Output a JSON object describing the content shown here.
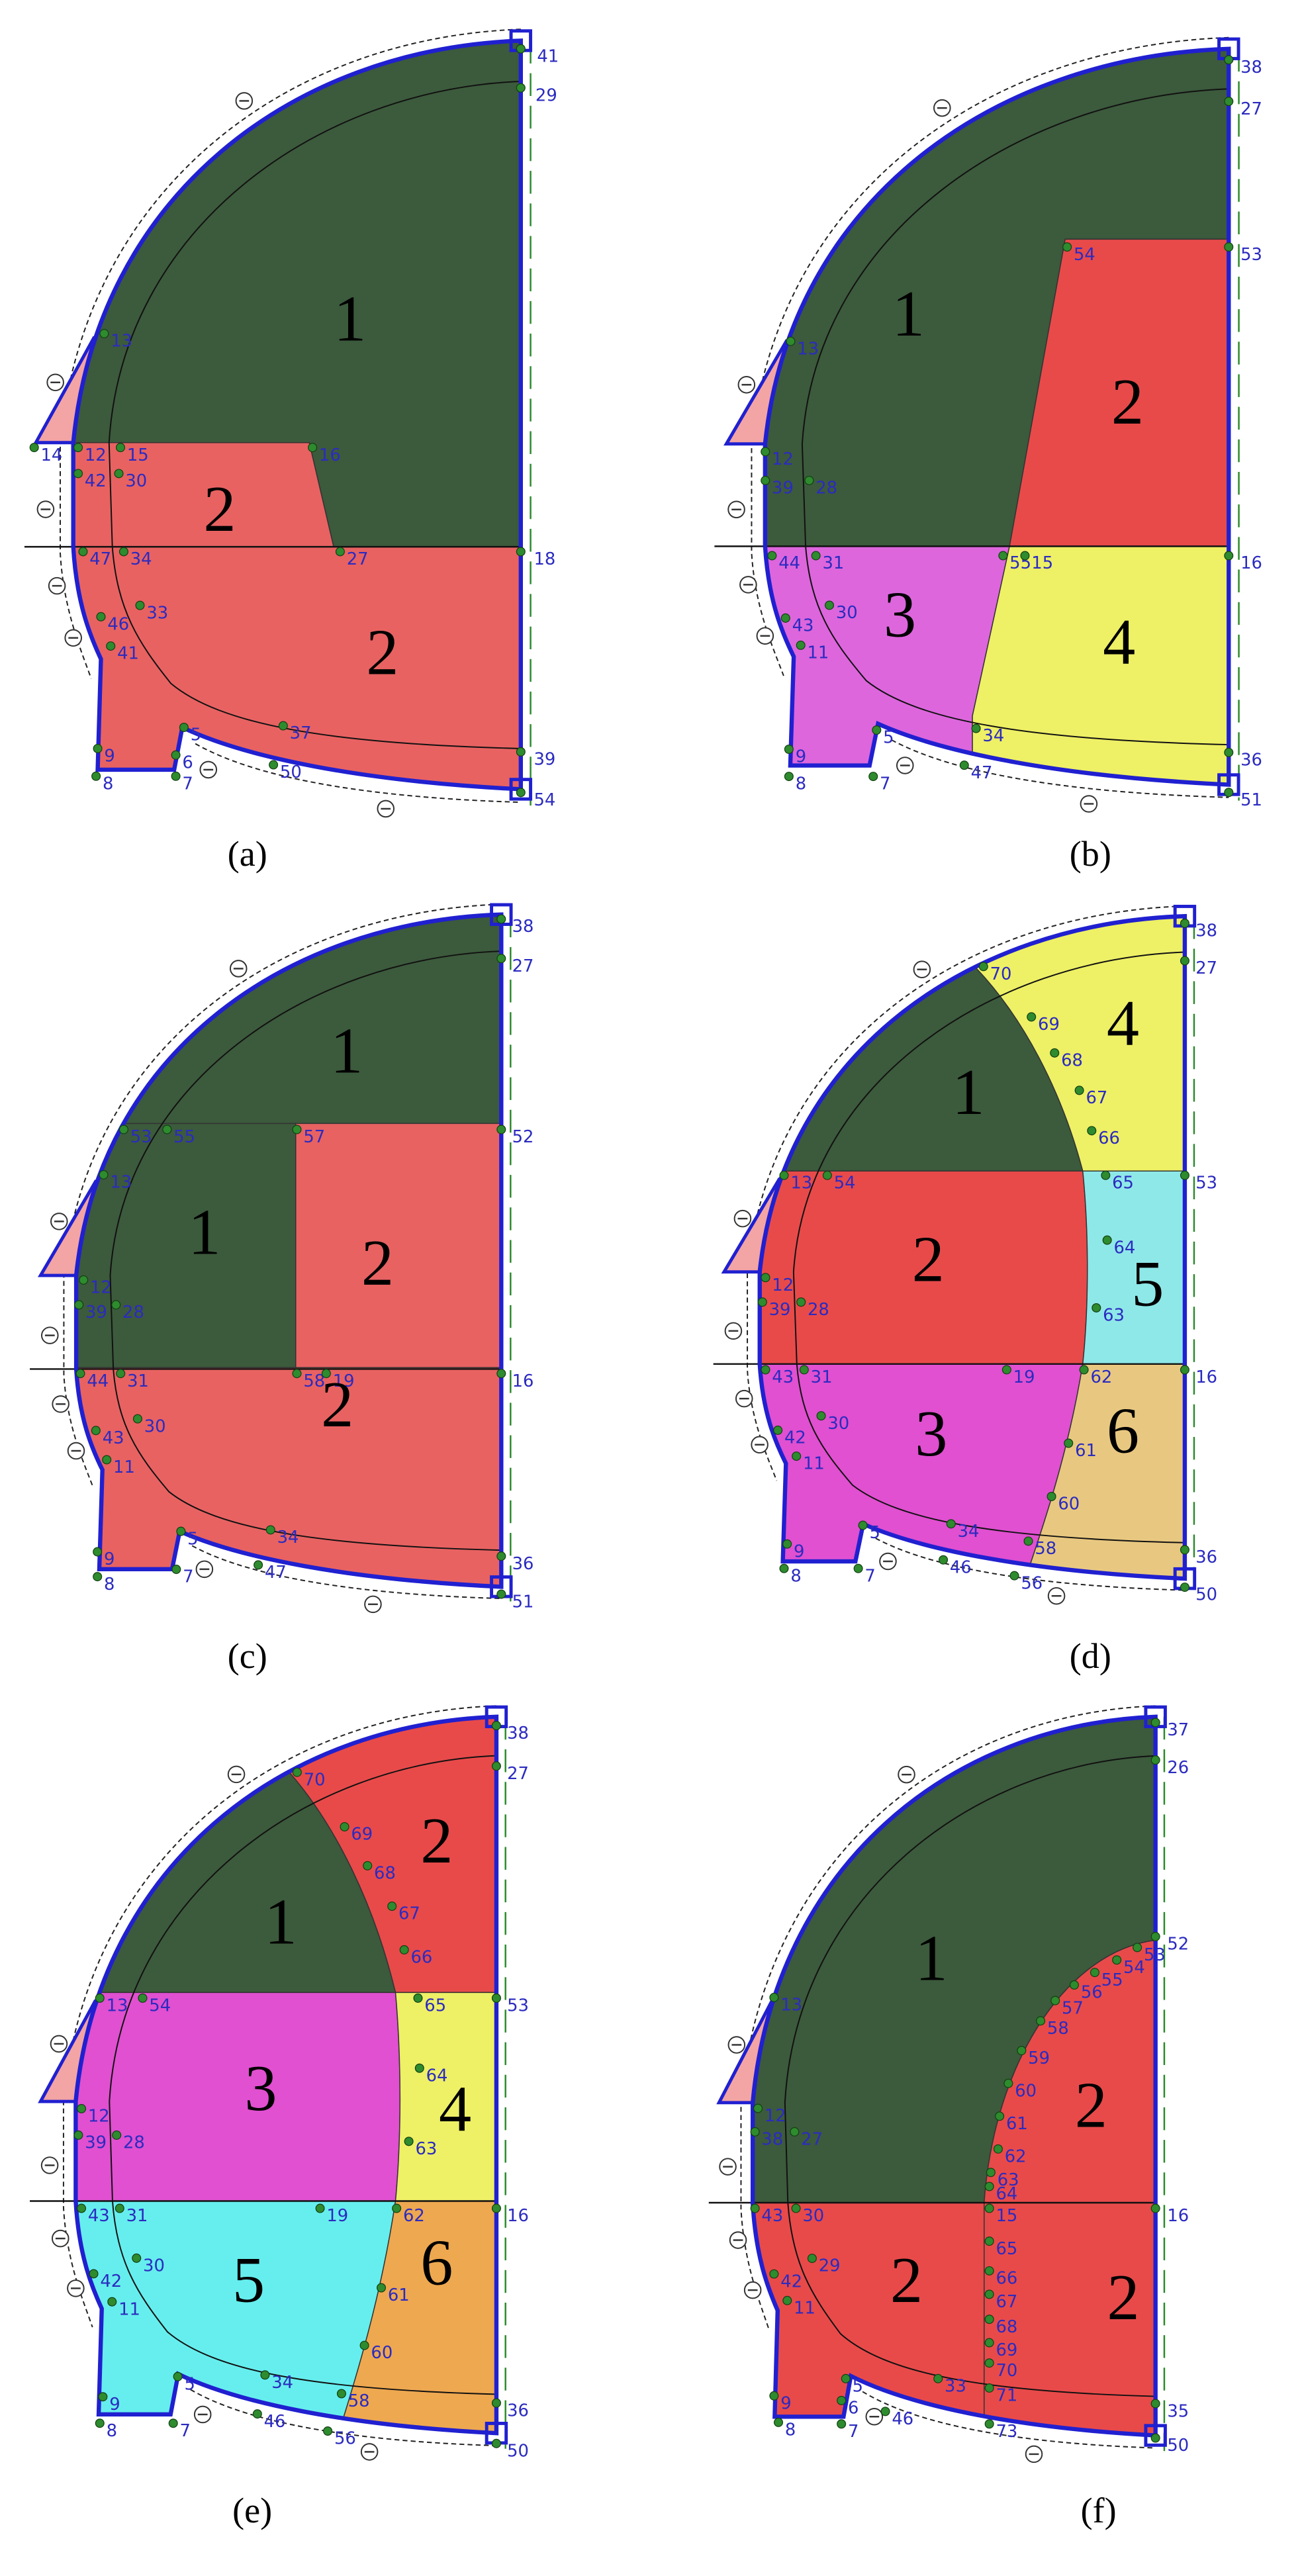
{
  "panels": [
    {
      "caption": "(a)",
      "regions": [
        "1",
        "2",
        "2"
      ],
      "nodes": [
        "41",
        "29",
        "13",
        "14",
        "12",
        "15",
        "16",
        "42",
        "30",
        "47",
        "34",
        "27",
        "18",
        "46",
        "33",
        "41",
        "37",
        "5",
        "6",
        "9",
        "8",
        "7",
        "50",
        "39",
        "54"
      ]
    },
    {
      "caption": "(b)",
      "regions": [
        "1",
        "2",
        "3",
        "4"
      ],
      "nodes": [
        "38",
        "27",
        "54",
        "53",
        "13",
        "12",
        "39",
        "28",
        "44",
        "31",
        "55",
        "15",
        "16",
        "43",
        "30",
        "11",
        "34",
        "5",
        "47",
        "9",
        "8",
        "7",
        "36",
        "51"
      ]
    },
    {
      "caption": "(c)",
      "regions": [
        "1",
        "1",
        "2",
        "2"
      ],
      "nodes": [
        "38",
        "27",
        "53",
        "55",
        "57",
        "52",
        "13",
        "12",
        "39",
        "28",
        "44",
        "31",
        "58",
        "19",
        "16",
        "43",
        "30",
        "11",
        "34",
        "5",
        "47",
        "9",
        "8",
        "7",
        "36",
        "51"
      ]
    },
    {
      "caption": "(d)",
      "regions": [
        "1",
        "2",
        "3",
        "4",
        "5",
        "6"
      ],
      "nodes": [
        "70",
        "38",
        "27",
        "69",
        "68",
        "67",
        "66",
        "65",
        "53",
        "13",
        "54",
        "64",
        "63",
        "12",
        "39",
        "28",
        "43",
        "31",
        "19",
        "62",
        "16",
        "42",
        "30",
        "61",
        "11",
        "60",
        "34",
        "58",
        "5",
        "46",
        "56",
        "9",
        "8",
        "7",
        "36",
        "50"
      ]
    },
    {
      "caption": "(e)",
      "regions": [
        "1",
        "2",
        "3",
        "4",
        "5",
        "6"
      ],
      "nodes": [
        "70",
        "38",
        "27",
        "69",
        "68",
        "67",
        "66",
        "65",
        "53",
        "13",
        "54",
        "64",
        "63",
        "12",
        "39",
        "28",
        "43",
        "31",
        "19",
        "62",
        "16",
        "42",
        "30",
        "61",
        "11",
        "60",
        "34",
        "58",
        "5",
        "46",
        "56",
        "9",
        "8",
        "7",
        "36",
        "50"
      ]
    },
    {
      "caption": "(f)",
      "regions": [
        "1",
        "2",
        "2",
        "2"
      ],
      "nodes": [
        "37",
        "26",
        "52",
        "53",
        "54",
        "55",
        "56",
        "57",
        "58",
        "59",
        "60",
        "61",
        "62",
        "63",
        "13",
        "12",
        "38",
        "27",
        "43",
        "30",
        "64",
        "15",
        "16",
        "65",
        "29",
        "66",
        "67",
        "42",
        "68",
        "11",
        "69",
        "70",
        "33",
        "71",
        "5",
        "46",
        "73",
        "9",
        "8",
        "6",
        "7",
        "35",
        "50"
      ]
    }
  ]
}
